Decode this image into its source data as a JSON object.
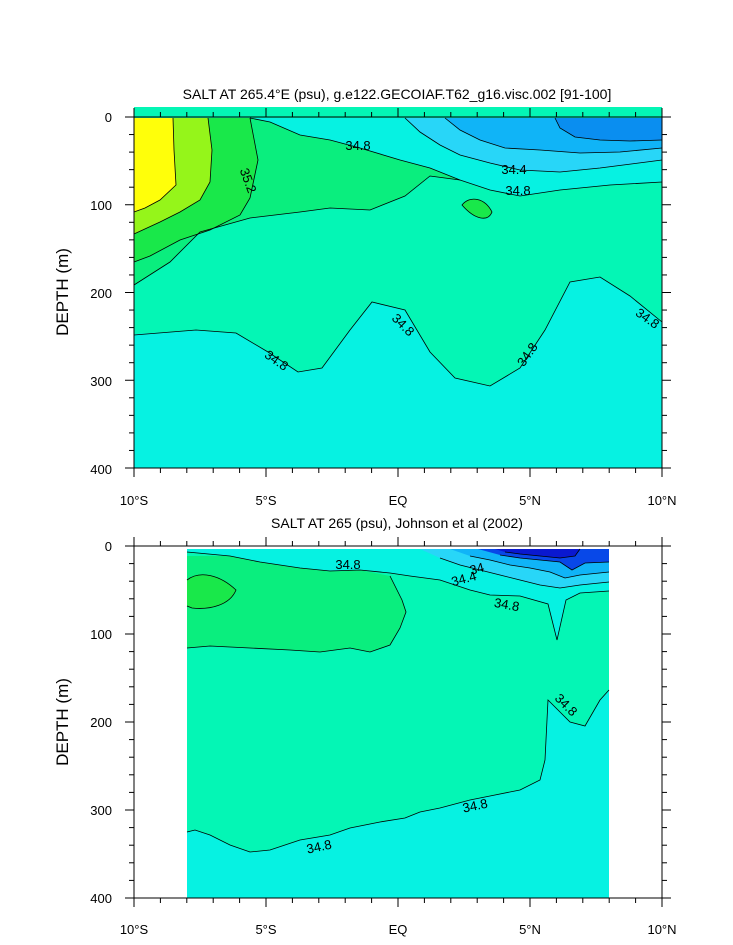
{
  "chart_data": [
    {
      "type": "contour",
      "title": "SALT AT 265.4°E (psu), g.e122.GECOIAF.T62_g16.visc.002 [91-100]",
      "ylabel": "DEPTH (m)",
      "xlabel": "",
      "xlim": [
        -10,
        10
      ],
      "ylim": [
        400,
        0
      ],
      "x_ticks": [
        "10°S",
        "5°S",
        "EQ",
        "5°N",
        "10°N"
      ],
      "y_ticks": [
        "0",
        "100",
        "200",
        "300",
        "400"
      ],
      "contour_labels": [
        {
          "text": "34.8",
          "x": -0.6,
          "y": 30
        },
        {
          "text": "34.4",
          "x": 4.3,
          "y": 60
        },
        {
          "text": "34.8",
          "x": 4.5,
          "y": 82
        },
        {
          "text": "35.2",
          "x": -5.7,
          "y": 72
        },
        {
          "text": "34.8",
          "x": -1.0,
          "y": 235
        },
        {
          "text": "34.8",
          "x": -4.7,
          "y": 275
        },
        {
          "text": "34.8",
          "x": 5.0,
          "y": 270
        },
        {
          "text": "34.8",
          "x": 9.4,
          "y": 230
        }
      ],
      "colors": {
        "yellow": "#ffff0a",
        "lightgreen": "#95f51a",
        "green": "#19e84a",
        "seagreen": "#0aee7e",
        "aquagreen": "#04f6b5",
        "cyan": "#06f2e2",
        "lightblue": "#28d6f8",
        "blue": "#10b4f7",
        "deepblue": "#0a8ef0"
      }
    },
    {
      "type": "contour",
      "title": "SALT AT 265 (psu), Johnson et al (2002)",
      "ylabel": "DEPTH (m)",
      "xlabel": "",
      "xlim": [
        -10,
        10
      ],
      "ylim": [
        400,
        0
      ],
      "data_xrange": [
        -8,
        8
      ],
      "x_ticks": [
        "10°S",
        "5°S",
        "EQ",
        "5°N",
        "10°N"
      ],
      "y_ticks": [
        "0",
        "100",
        "200",
        "300",
        "400"
      ],
      "contour_labels": [
        {
          "text": "34.8",
          "x": -2.0,
          "y": 20
        },
        {
          "text": "34",
          "x": 3.0,
          "y": 25
        },
        {
          "text": "34.4",
          "x": 2.6,
          "y": 38
        },
        {
          "text": "34.8",
          "x": 4.0,
          "y": 70
        },
        {
          "text": "34.8",
          "x": 6.0,
          "y": 182
        },
        {
          "text": "34.8",
          "x": 3.0,
          "y": 295
        },
        {
          "text": "34.8",
          "x": -3.0,
          "y": 340
        }
      ],
      "colors": {
        "green": "#19e84a",
        "seagreen": "#0aee7e",
        "aquagreen": "#04f6b5",
        "cyan": "#06f2e2",
        "lightblue": "#28d6f8",
        "blue": "#10b4f7",
        "deepblue": "#0848e8",
        "navy": "#0a18d0"
      }
    }
  ]
}
